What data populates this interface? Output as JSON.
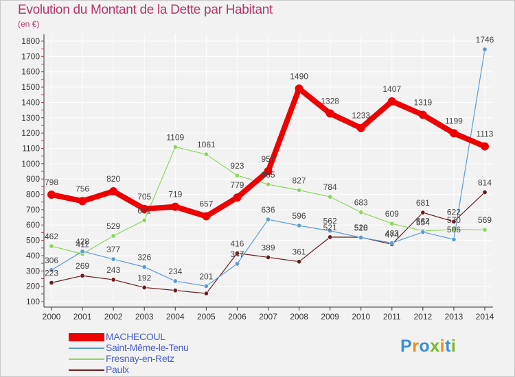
{
  "header": {
    "title": "Evolution du Montant de la Dette par Habitant",
    "unit": "(en €)"
  },
  "logo": {
    "text": "Proxiti",
    "colors": [
      "#3a8fd6",
      "#f28a1a",
      "#3a8fd6",
      "#7ab829",
      "#f28a1a",
      "#3a8fd6",
      "#7ab829"
    ]
  },
  "colors": {
    "accent": "#b5366e",
    "grid": "#ffffff",
    "axis": "#555555",
    "background": "#f2f2f2"
  },
  "chart_data": {
    "type": "line",
    "title": "Evolution du Montant de la Dette par Habitant",
    "ylabel": "(en €)",
    "xlabel": "",
    "ylim": [
      100,
      1800
    ],
    "yticks": [
      100,
      200,
      300,
      400,
      500,
      600,
      700,
      800,
      900,
      1000,
      1100,
      1200,
      1300,
      1400,
      1500,
      1600,
      1700,
      1800
    ],
    "categories": [
      "2000",
      "2001",
      "2002",
      "2003",
      "2004",
      "2005",
      "2006",
      "2007",
      "2008",
      "2009",
      "2010",
      "2011",
      "2012",
      "2013",
      "2014"
    ],
    "grid": true,
    "legend": "bottom-left",
    "series": [
      {
        "name": "Paulx",
        "color": "#6b1c1c",
        "width": 1.2,
        "values": [
          223,
          269,
          243,
          192,
          173,
          153,
          416,
          389,
          361,
          521,
          520,
          474,
          681,
          622,
          814
        ],
        "labels": [
          "223",
          "269",
          "243",
          "192",
          "",
          "",
          "416",
          "389",
          "361",
          "521",
          "520",
          "474",
          "681",
          "622",
          "814"
        ]
      },
      {
        "name": "Fresnay-en-Retz",
        "color": "#8cd65a",
        "width": 1.2,
        "values": [
          462,
          411,
          529,
          631,
          1109,
          1061,
          923,
          865,
          827,
          784,
          683,
          609,
          562,
          570,
          569
        ],
        "labels": [
          "462",
          "411",
          "529",
          "631",
          "1109",
          "1061",
          "923",
          "865",
          "827",
          "784",
          "683",
          "609",
          "562",
          "570",
          "569"
        ]
      },
      {
        "name": "Saint-Même-le-Tenu",
        "color": "#5b9bd5",
        "width": 1.2,
        "values": [
          306,
          428,
          377,
          326,
          234,
          201,
          347,
          636,
          596,
          562,
          518,
          483,
          554,
          506,
          1746
        ],
        "labels": [
          "306",
          "428",
          "377",
          "326",
          "234",
          "201",
          "347",
          "636",
          "596",
          "562",
          "518",
          "483",
          "554",
          "506",
          "1746"
        ]
      },
      {
        "name": "MACHECOUL",
        "color": "#ee0000",
        "width": 8,
        "values": [
          798,
          756,
          820,
          705,
          719,
          657,
          779,
          951,
          1490,
          1328,
          1233,
          1407,
          1319,
          1199,
          1113
        ],
        "labels": [
          "798",
          "756",
          "820",
          "705",
          "719",
          "657",
          "779",
          "951",
          "1490",
          "1328",
          "1233",
          "1407",
          "1319",
          "1199",
          "1113"
        ]
      }
    ],
    "legend_entries": [
      "MACHECOUL",
      "Saint-Même-le-Tenu",
      "Fresnay-en-Retz",
      "Paulx"
    ],
    "extra_labels": [
      "173",
      "153"
    ]
  }
}
